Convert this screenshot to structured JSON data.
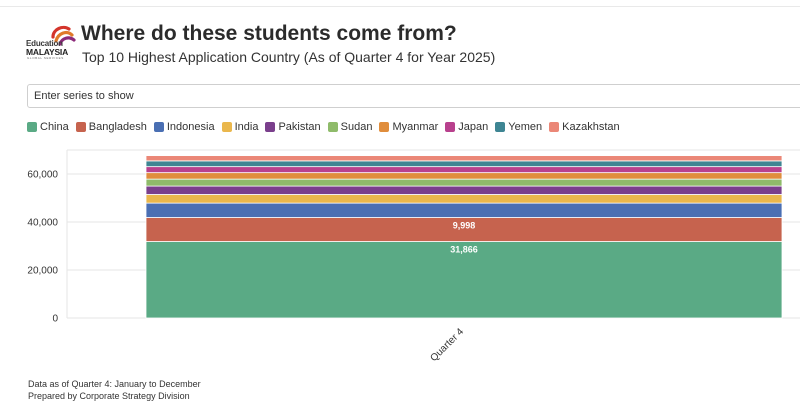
{
  "header": {
    "logo_line1": "Education",
    "logo_line2": "MALAYSIA",
    "logo_line3": "GLOBAL SERVICES",
    "title": "Where do these students come from?",
    "subtitle": "Top 10 Highest Application Country (As of Quarter 4 for Year 2025)"
  },
  "series_selector": {
    "placeholder": "Enter series to show"
  },
  "footer": {
    "line1": "Data as of Quarter 4: January to December",
    "line2": "Prepared by Corporate Strategy Division"
  },
  "chart_data": {
    "type": "bar",
    "stacked": true,
    "categories": [
      "Quarter 4"
    ],
    "series": [
      {
        "name": "China",
        "color": "#5aaa85",
        "values": [
          31866
        ],
        "label": "31,866"
      },
      {
        "name": "Bangladesh",
        "color": "#c6634e",
        "values": [
          9998
        ],
        "label": "9,998"
      },
      {
        "name": "Indonesia",
        "color": "#4a6fb3",
        "values": [
          6000
        ]
      },
      {
        "name": "India",
        "color": "#eab74c",
        "values": [
          3600
        ]
      },
      {
        "name": "Pakistan",
        "color": "#7a3f8c",
        "values": [
          3500
        ]
      },
      {
        "name": "Sudan",
        "color": "#8fbb6a",
        "values": [
          2900
        ]
      },
      {
        "name": "Myanmar",
        "color": "#e08d3c",
        "values": [
          2700
        ]
      },
      {
        "name": "Japan",
        "color": "#b8408d",
        "values": [
          2500
        ]
      },
      {
        "name": "Yemen",
        "color": "#3e8593",
        "values": [
          2400
        ]
      },
      {
        "name": "Kazakhstan",
        "color": "#eb8777",
        "values": [
          2200
        ]
      }
    ],
    "ylim": [
      0,
      70000
    ],
    "yticks": [
      0,
      20000,
      40000,
      60000
    ],
    "ytick_labels": [
      "0",
      "20,000",
      "40,000",
      "60,000"
    ],
    "xlabel": "",
    "ylabel": "",
    "grid": true,
    "legend_position": "top-left"
  }
}
